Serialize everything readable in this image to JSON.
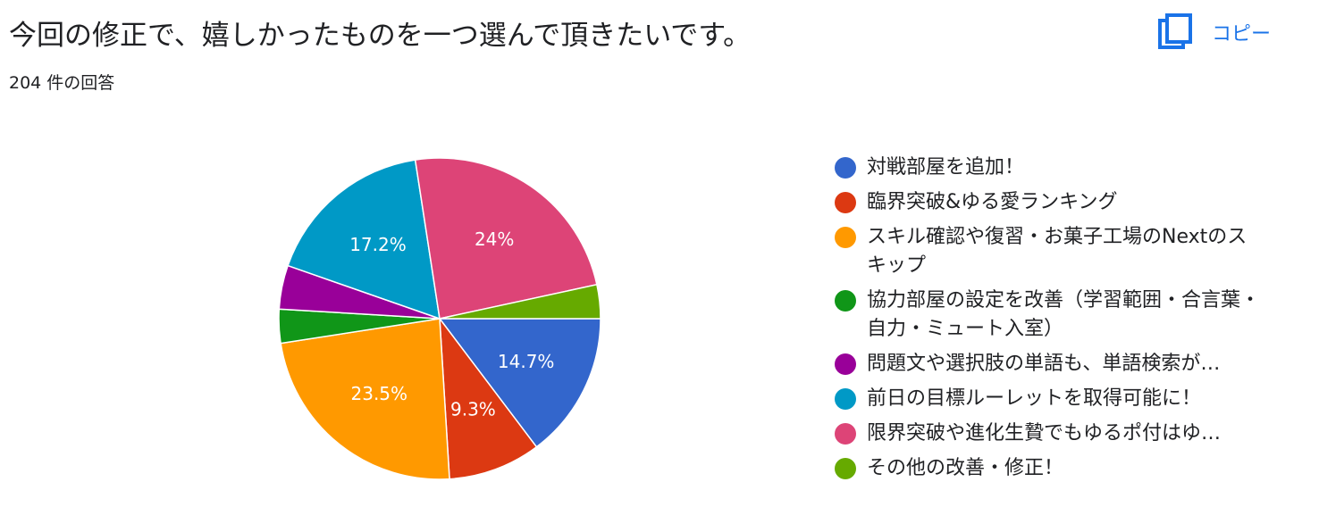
{
  "question_title": "今回の修正で、嬉しかったものを一つ選んで頂きたいです。",
  "response_count": "204 件の回答",
  "copy_button": {
    "label": "コピー",
    "icon": "copy-icon"
  },
  "colors": {
    "accent": "#1a73e8"
  },
  "chart_data": {
    "type": "pie",
    "start": "3 o'clock, clockwise",
    "legend_position": "right",
    "slices": [
      {
        "label": "対戦部屋を追加！",
        "value": 14.7,
        "display": "14.7%",
        "color": "#3366cc",
        "truncated": false
      },
      {
        "label": "臨界突破&ゆる愛ランキング",
        "value": 9.3,
        "display": "9.3%",
        "color": "#dc3912",
        "truncated": false
      },
      {
        "label": "スキル確認や復習・お菓子工場のNextのスキップ",
        "value": 23.5,
        "display": "23.5%",
        "color": "#ff9900",
        "truncated": false
      },
      {
        "label": "協力部屋の設定を改善（学習範囲・合言葉・自力・ミュート入室）",
        "value": 3.4,
        "display": "",
        "color": "#109618",
        "truncated": false
      },
      {
        "label": "問題文や選択肢の単語も、単語検索が…",
        "value": 4.4,
        "display": "",
        "color": "#990099",
        "truncated": true
      },
      {
        "label": "前日の目標ルーレットを取得可能に！",
        "value": 17.2,
        "display": "17.2%",
        "color": "#0099c6",
        "truncated": false
      },
      {
        "label": "限界突破や進化生贄でもゆるポ付はゆ…",
        "value": 24.0,
        "display": "24%",
        "color": "#dd4477",
        "truncated": true
      },
      {
        "label": "その他の改善・修正！",
        "value": 3.4,
        "display": "",
        "color": "#66aa00",
        "truncated": false
      }
    ]
  }
}
